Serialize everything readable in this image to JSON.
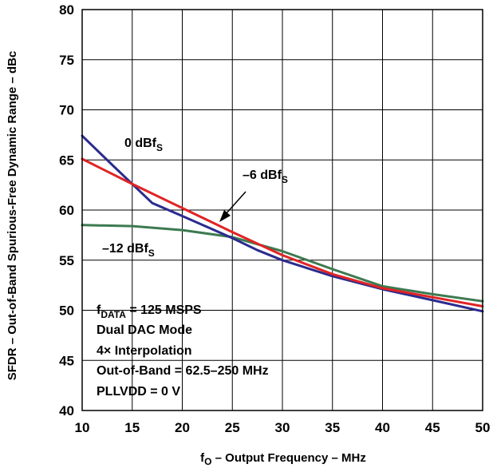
{
  "chart_data": {
    "type": "line",
    "xlabel": {
      "prefix": "f",
      "sub": "O",
      "rest": " – Output Frequency – MHz"
    },
    "ylabel": "SFDR – Out-of-Band Spurious-Free Dynamic Range – dBc",
    "xlim": [
      10,
      50
    ],
    "ylim": [
      40,
      80
    ],
    "grid": true,
    "x_ticks": [
      "10",
      "15",
      "20",
      "25",
      "30",
      "35",
      "40",
      "45",
      "50"
    ],
    "y_ticks": [
      "40",
      "45",
      "50",
      "55",
      "60",
      "65",
      "70",
      "75",
      "80"
    ],
    "series": [
      {
        "name": "0 dBfS",
        "color": "#2b2b8f",
        "x": [
          10,
          13,
          15,
          17,
          20,
          22.5,
          25,
          27.5,
          30,
          35,
          40,
          45,
          50
        ],
        "y": [
          67.4,
          64.5,
          62.6,
          60.7,
          59.4,
          58.3,
          57.2,
          56.0,
          55.0,
          53.4,
          52.1,
          51.0,
          49.9
        ]
      },
      {
        "name": "–6 dBfS",
        "color": "#e02424",
        "x": [
          10,
          15,
          20,
          25,
          30,
          35,
          40,
          45,
          50
        ],
        "y": [
          65.1,
          62.6,
          60.2,
          57.8,
          55.5,
          53.6,
          52.2,
          51.3,
          50.4
        ]
      },
      {
        "name": "–12 dBfS",
        "color": "#3d7a50",
        "x": [
          10,
          15,
          20,
          25,
          30,
          35,
          40,
          45,
          50
        ],
        "y": [
          58.5,
          58.4,
          58.0,
          57.3,
          55.9,
          54.1,
          52.4,
          51.6,
          50.9
        ]
      }
    ],
    "series_labels": [
      {
        "base": "0 dBf",
        "sub": "S"
      },
      {
        "base": "–6 dBf",
        "sub": "S"
      },
      {
        "base": "–12 dBf",
        "sub": "S"
      }
    ],
    "conditions": {
      "fdata": {
        "prefix": "f",
        "sub": "DATA",
        "rest": " = 125 MSPS"
      },
      "line2": "Dual DAC Mode",
      "line3": "4× Interpolation",
      "line4": "Out-of-Band = 62.5–250 MHz",
      "line5": "PLLVDD = 0 V"
    }
  }
}
